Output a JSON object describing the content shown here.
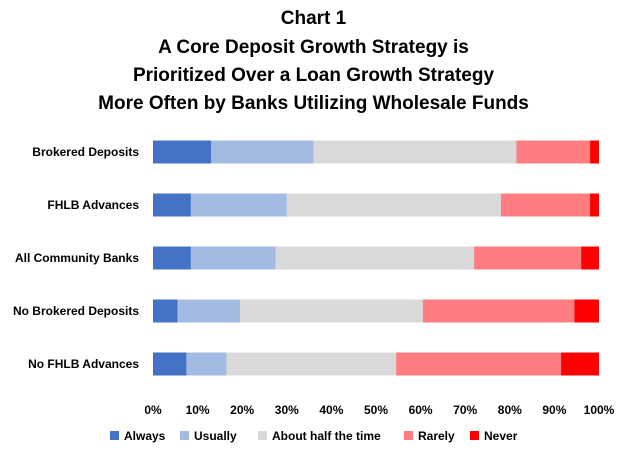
{
  "chart_data": {
    "type": "bar",
    "orientation": "horizontal",
    "stacked": true,
    "title_lines": [
      "Chart 1",
      "A Core Deposit Growth Strategy is",
      "Prioritized Over a Loan Growth Strategy",
      "More Often by Banks Utilizing Wholesale Funds"
    ],
    "categories": [
      "Brokered Deposits",
      "FHLB Advances",
      "All Community Banks",
      "No Brokered Deposits",
      "No FHLB Advances"
    ],
    "series": [
      {
        "name": "Always",
        "color": "#4472C4",
        "values": [
          13,
          8.5,
          8.5,
          5.5,
          7.5
        ]
      },
      {
        "name": "Usually",
        "color": "#A3BBE3",
        "values": [
          23,
          21.5,
          19,
          14,
          9
        ]
      },
      {
        "name": "About half the time",
        "color": "#D9D9D9",
        "values": [
          45.5,
          48,
          44.5,
          41,
          38
        ]
      },
      {
        "name": "Rarely",
        "color": "#FF7C80",
        "values": [
          16.5,
          20,
          24,
          34,
          37
        ]
      },
      {
        "name": "Never",
        "color": "#FF0000",
        "values": [
          2,
          2,
          4,
          5.5,
          8.5
        ]
      }
    ],
    "xlim": [
      0,
      100
    ],
    "x_ticks": [
      "0%",
      "10%",
      "20%",
      "30%",
      "40%",
      "50%",
      "60%",
      "70%",
      "80%",
      "90%",
      "100%"
    ],
    "grid": false,
    "legend_position": "bottom"
  }
}
